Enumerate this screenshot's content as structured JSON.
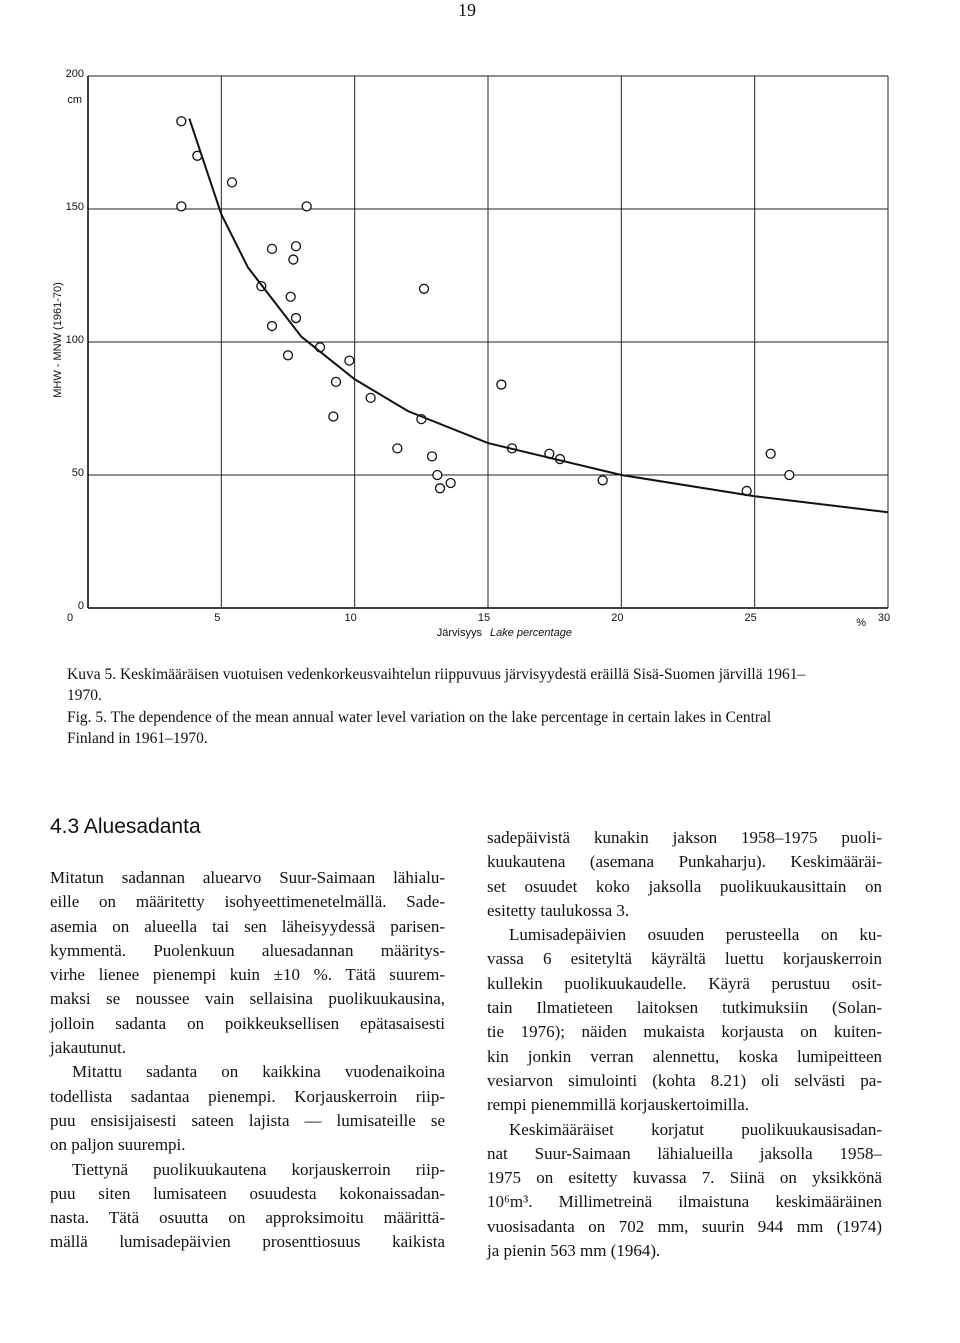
{
  "page_number": "19",
  "chart_data": {
    "type": "scatter",
    "y_label": "MHW - MNW (1961-70)",
    "y_unit": "cm",
    "x_label": "Järvisyys",
    "x_label_en": "Lake percentage",
    "x_unit": "%",
    "xlim": [
      0,
      30
    ],
    "ylim": [
      0,
      200
    ],
    "xticks": [
      0,
      5,
      10,
      15,
      20,
      25,
      30
    ],
    "yticks": [
      0,
      50,
      100,
      150,
      200
    ],
    "grid": true,
    "series": [
      {
        "color": "#111111",
        "marker": "circle",
        "x": [
          3.5,
          4.1,
          3.5,
          5.4,
          8.2,
          6.9,
          7.8,
          7.7,
          6.5,
          7.6,
          12.6,
          6.9,
          7.8,
          7.5,
          8.7,
          9.8,
          9.3,
          10.6,
          15.5,
          9.2,
          12.5,
          11.6,
          12.9,
          13.1,
          15.9,
          17.3,
          17.7,
          13.2,
          13.6,
          19.3,
          25.6,
          26.3,
          24.7
        ],
        "values": [
          183,
          170,
          151,
          160,
          151,
          135,
          136,
          131,
          121,
          117,
          120,
          106,
          109,
          95,
          98,
          93,
          85,
          79,
          84,
          72,
          71,
          60,
          57,
          50,
          60,
          58,
          56,
          45,
          47,
          48,
          58,
          50,
          44
        ]
      },
      {
        "color": "#111111",
        "marker": "line",
        "x": [
          3.8,
          5,
          6,
          8,
          10,
          12,
          15,
          20,
          25,
          30
        ],
        "values": [
          184,
          148,
          128,
          102,
          86,
          74,
          62,
          50,
          42,
          36
        ]
      }
    ]
  },
  "caption": {
    "finnish": [
      "Kuva 5. Keskimääräisen vuotuisen vedenkorkeusvaihtelun riippuvuus järvisyydestä eräillä Sisä-Suomen järvillä 1961–",
      "1970."
    ],
    "english": [
      "Fig. 5. The dependence of the mean annual water level variation on the lake percentage in certain lakes in Central",
      "Finland in 1961–1970."
    ]
  },
  "section": {
    "heading": "4.3 Aluesadanta",
    "left": [
      [
        "Mitatun sadannan aluearvo Suur-Saimaan lähialu-",
        "eille on määritetty isohyeettimenetelmällä. Sade-",
        "asemia on alueella tai sen läheisyydessä parisen-",
        "kymmentä. Puolenkuun aluesadannan määritys-",
        "virhe lienee pienempi kuin ±10 %. Tätä suurem-",
        "maksi se noussee vain sellaisina puolikuukausina,",
        "jolloin sadanta on poikkeuksellisen epätasaisesti",
        "jakautunut."
      ],
      [
        "Mitattu sadanta on kaikkina vuodenaikoina",
        "todellista sadantaa pienempi. Korjauskerroin riip-",
        "puu ensisijaisesti sateen lajista — lumisateille se",
        "on paljon suurempi."
      ],
      [
        "Tiettynä puolikuukautena korjauskerroin riip-",
        "puu siten lumisateen osuudesta kokonaissadan-",
        "nasta. Tätä osuutta on approksimoitu määrittä-",
        "mällä lumisadepäivien prosenttiosuus kaikista"
      ]
    ],
    "right": [
      [
        "sadepäivistä kunakin jakson 1958–1975 puoli-",
        "kuukautena (asemana Punkaharju). Keskimääräi-",
        "set osuudet koko jaksolla puolikuukausittain on",
        "esitetty taulukossa 3."
      ],
      [
        "Lumisadepäivien osuuden perusteella on ku-",
        "vassa 6 esitetyltä käyrältä luettu korjauskerroin",
        "kullekin puolikuukaudelle. Käyrä perustuu osit-",
        "tain Ilmatieteen laitoksen tutkimuksiin (Solan-",
        "tie 1976); näiden mukaista korjausta on kuiten-",
        "kin jonkin verran alennettu, koska lumipeitteen",
        "vesiarvon simulointi (kohta 8.21) oli selvästi pa-",
        "rempi pienemmillä korjauskertoimilla."
      ],
      [
        "Keskimääräiset korjatut puolikuukausisadan-",
        "nat Suur-Saimaan lähialueilla jaksolla 1958–",
        "1975 on esitetty kuvassa 7. Siinä on yksikkönä",
        "10⁶m³. Millimetreinä ilmaistuna keskimääräinen",
        "vuosisadanta on 702 mm, suurin 944 mm (1974)",
        "ja pienin 563 mm (1964)."
      ]
    ]
  }
}
